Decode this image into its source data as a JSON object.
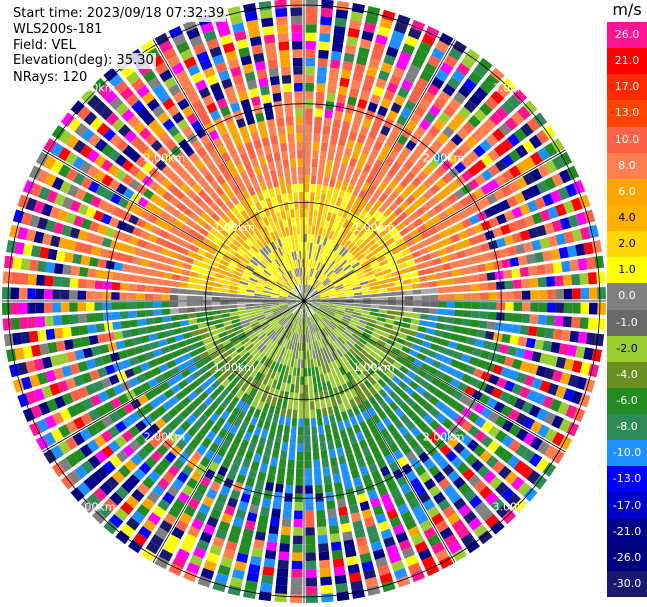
{
  "info": {
    "start_time": "Start time: 2023/09/18 07:32:39",
    "instrument": "WLS200s-181",
    "field": "Field: VEL",
    "elevation": "Elevation(deg): 35.30",
    "nrays": "NRays: 120"
  },
  "range_labels": [
    "1.00km",
    "2.00km",
    "3.00km"
  ],
  "colorbar": {
    "unit": "m/s",
    "ticks": [
      "26.0",
      "21.0",
      "17.0",
      "13.0",
      "10.0",
      "8.0",
      "6.0",
      "4.0",
      "2.0",
      "1.0",
      "0.0",
      "-1.0",
      "-2.0",
      "-4.0",
      "-6.0",
      "-8.0",
      "-10.0",
      "-13.0",
      "-17.0",
      "-21.0",
      "-26.0",
      "-30.0"
    ],
    "colors": [
      "#ff1493",
      "#ff0000",
      "#ff2a00",
      "#ff4500",
      "#ff6347",
      "#ff7f50",
      "#ffa500",
      "#ffb000",
      "#ffd700",
      "#ffff00",
      "#808080",
      "#696969",
      "#9acd32",
      "#6b8e23",
      "#228b22",
      "#2e8b57",
      "#1e90ff",
      "#0000ff",
      "#0000cd",
      "#00008b",
      "#000080",
      "#191970"
    ]
  },
  "scan": {
    "n_rays": 120,
    "max_range_km": 3.0,
    "palette_noise": [
      "#ff1493",
      "#ff0000",
      "#ffa500",
      "#ffff00",
      "#808080",
      "#9acd32",
      "#228b22",
      "#2e8b57",
      "#1e90ff",
      "#0000ff",
      "#00008b",
      "#191970",
      "#ff00ff",
      "#ff6347",
      "#ff7f50",
      "#000080"
    ]
  }
}
